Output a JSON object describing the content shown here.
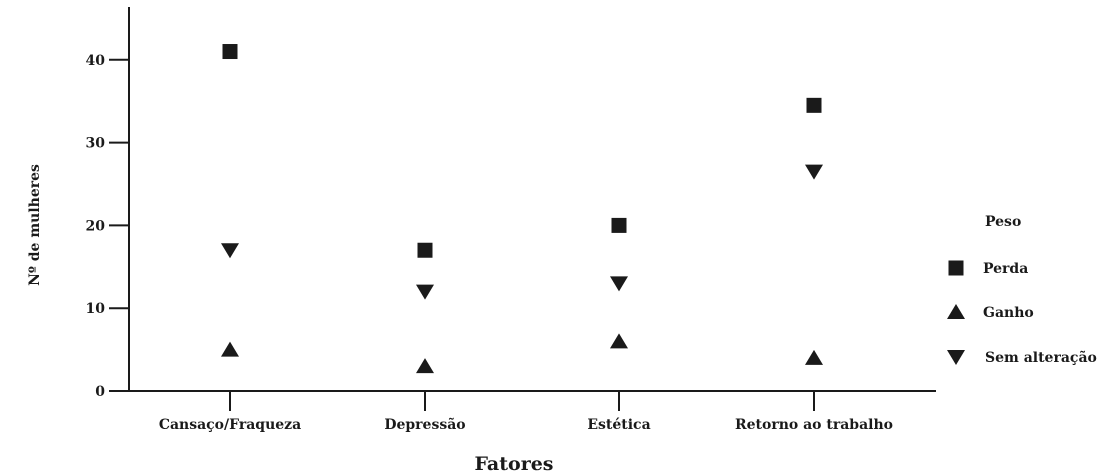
{
  "chart_data": {
    "type": "scatter",
    "title": "",
    "xlabel": "Fatores",
    "ylabel": "Nº de mulheres",
    "categories": [
      "Cansaço/Fraqueza",
      "Depressão",
      "Estética",
      "Retorno ao trabalho"
    ],
    "ylim": [
      0,
      47
    ],
    "yticks": [
      0,
      10,
      20,
      30,
      40
    ],
    "grid": false,
    "legend": {
      "title": "Peso",
      "placement": "right"
    },
    "series": [
      {
        "name": "Perda",
        "marker": "square",
        "values": [
          41,
          17,
          20,
          34.5
        ]
      },
      {
        "name": "Ganho",
        "marker": "triangle-up",
        "values": [
          5,
          3,
          6,
          4
        ]
      },
      {
        "name": "Sem alteração",
        "marker": "triangle-down",
        "values": [
          17,
          12,
          13,
          26.5
        ]
      }
    ]
  }
}
